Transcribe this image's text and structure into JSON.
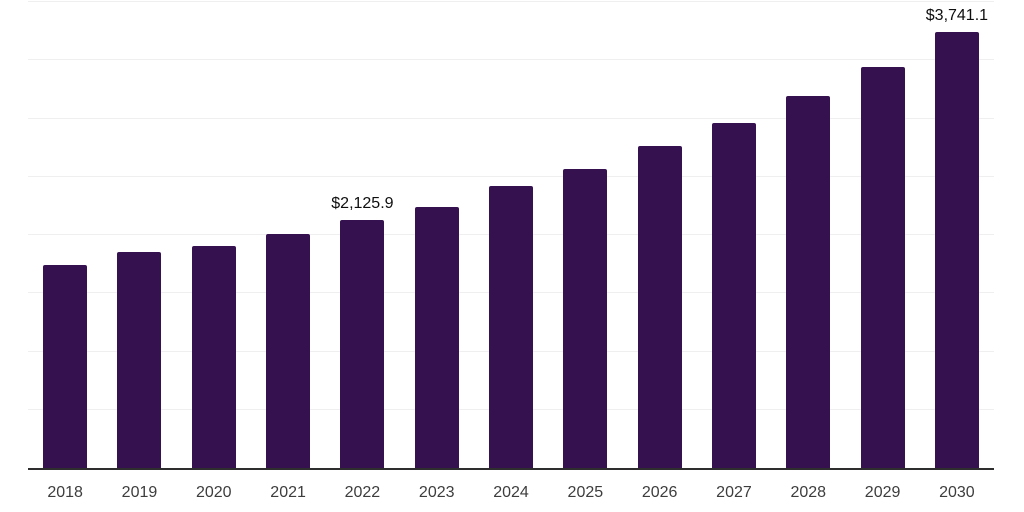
{
  "chart": {
    "background_color": "#ffffff",
    "bar_color": "#351150",
    "grid_color": "#efefef",
    "axis_line_color": "#2e2e2e",
    "tick_label_color": "#3d3d3d",
    "data_label_color": "#0f0f0f"
  },
  "chart_data": {
    "type": "bar",
    "title": "",
    "xlabel": "",
    "ylabel": "",
    "categories": [
      "2018",
      "2019",
      "2020",
      "2021",
      "2022",
      "2023",
      "2024",
      "2025",
      "2026",
      "2027",
      "2028",
      "2029",
      "2030"
    ],
    "values": [
      1740,
      1850,
      1905,
      2013,
      2125.9,
      2241,
      2417,
      2568,
      2767,
      2959,
      3192,
      3443,
      3741.1
    ],
    "value_prefix": "$",
    "ylim": [
      0,
      4000
    ],
    "gridline_values": [
      500,
      1000,
      1500,
      2000,
      2500,
      3000,
      3500,
      4000
    ],
    "grid": "horizontal",
    "legend_position": "none",
    "y_axis_labels_visible": false,
    "data_labels": [
      {
        "category": "2022",
        "text": "$2,125.9"
      },
      {
        "category": "2030",
        "text": "$3,741.1"
      }
    ]
  }
}
